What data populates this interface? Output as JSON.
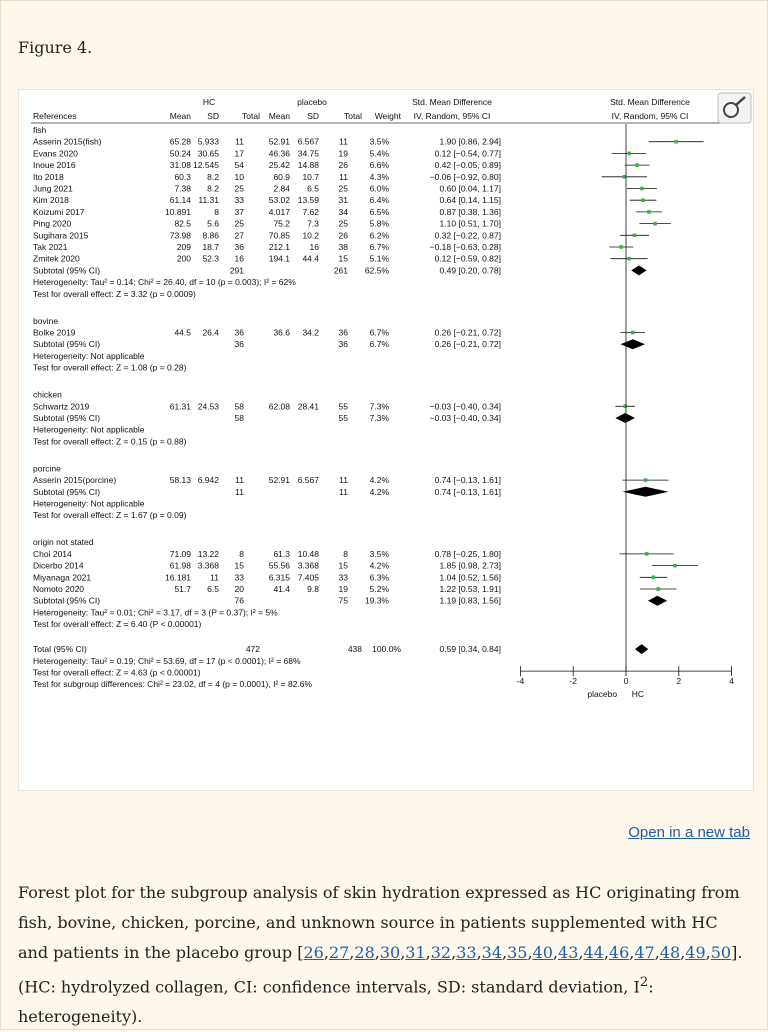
{
  "figure_label": "Figure 4.",
  "open_link": "Open in a new tab",
  "caption": {
    "before_refs": "Forest plot for the subgroup analysis of skin hydration expressed as HC originating from fish, bovine, chicken, porcine, and unknown source in patients supplemented with HC and patients in the placebo group [",
    "refs": [
      "26",
      "27",
      "28",
      "30",
      "31",
      "32",
      "33",
      "34",
      "35",
      "40",
      "43",
      "44",
      "46",
      "47",
      "48",
      "49",
      "50"
    ],
    "after_refs": "]. (HC: hydrolyzed collagen, CI: confidence intervals, SD: standard deviation, I",
    "sup": "2",
    "end": ": heterogeneity)."
  },
  "chart_data": {
    "type": "forest",
    "title": "Std. Mean Difference IV, Random, 95% CI",
    "header": {
      "group_hc": "HC",
      "group_placebo": "placebo",
      "smd_col": "Std. Mean Difference",
      "smd_sub": "IV, Random, 95% CI",
      "plot_col": "Std. Mean Difference",
      "plot_sub": "IV, Random, 95% CI",
      "columns": [
        "References",
        "Mean",
        "SD",
        "Total",
        "Mean",
        "SD",
        "Total",
        "Weight",
        "IV, Random, 95% CI"
      ]
    },
    "xaxis": {
      "ticks": [
        "-4",
        "-2",
        "0",
        "2",
        "4"
      ],
      "range": [
        -4,
        4
      ],
      "left_label": "placebo",
      "right_label": "HC"
    },
    "groups": [
      {
        "name": "fish",
        "studies": [
          {
            "ref": "Asserin 2015(fish)",
            "hc_mean": "65.28",
            "hc_sd": "5.933",
            "hc_n": "11",
            "pl_mean": "52.91",
            "pl_sd": "6.567",
            "pl_n": "11",
            "weight": "3.5%",
            "ci": "1.90 [0.86, 2.94]",
            "est": 1.9,
            "lo": 0.86,
            "hi": 2.94
          },
          {
            "ref": "Evans 2020",
            "hc_mean": "50.24",
            "hc_sd": "30.65",
            "hc_n": "17",
            "pl_mean": "46.36",
            "pl_sd": "34.75",
            "pl_n": "19",
            "weight": "5.4%",
            "ci": "0.12 [−0.54, 0.77]",
            "est": 0.12,
            "lo": -0.54,
            "hi": 0.77
          },
          {
            "ref": "Inoue 2016",
            "hc_mean": "31.08",
            "hc_sd": "12.545",
            "hc_n": "54",
            "pl_mean": "25.42",
            "pl_sd": "14.88",
            "pl_n": "26",
            "weight": "6.6%",
            "ci": "0.42 [−0.05, 0.89]",
            "est": 0.42,
            "lo": -0.05,
            "hi": 0.89
          },
          {
            "ref": "Ito 2018",
            "hc_mean": "60.3",
            "hc_sd": "8.2",
            "hc_n": "10",
            "pl_mean": "60.9",
            "pl_sd": "10.7",
            "pl_n": "11",
            "weight": "4.3%",
            "ci": "−0.06 [−0.92, 0.80]",
            "est": -0.06,
            "lo": -0.92,
            "hi": 0.8
          },
          {
            "ref": "Jung 2021",
            "hc_mean": "7.38",
            "hc_sd": "8.2",
            "hc_n": "25",
            "pl_mean": "2.84",
            "pl_sd": "6.5",
            "pl_n": "25",
            "weight": "6.0%",
            "ci": "0.60 [0.04, 1.17]",
            "est": 0.6,
            "lo": 0.04,
            "hi": 1.17
          },
          {
            "ref": "Kim 2018",
            "hc_mean": "61.14",
            "hc_sd": "11.31",
            "hc_n": "33",
            "pl_mean": "53.02",
            "pl_sd": "13.59",
            "pl_n": "31",
            "weight": "6.4%",
            "ci": "0.64 [0.14, 1.15]",
            "est": 0.64,
            "lo": 0.14,
            "hi": 1.15
          },
          {
            "ref": "Koizumi 2017",
            "hc_mean": "10.891",
            "hc_sd": "8",
            "hc_n": "37",
            "pl_mean": "4.017",
            "pl_sd": "7.62",
            "pl_n": "34",
            "weight": "6.5%",
            "ci": "0.87 [0.38, 1.36]",
            "est": 0.87,
            "lo": 0.38,
            "hi": 1.36
          },
          {
            "ref": "Ping 2020",
            "hc_mean": "82.5",
            "hc_sd": "5.6",
            "hc_n": "25",
            "pl_mean": "75.2",
            "pl_sd": "7.3",
            "pl_n": "25",
            "weight": "5.8%",
            "ci": "1.10 [0.51, 1.70]",
            "est": 1.1,
            "lo": 0.51,
            "hi": 1.7
          },
          {
            "ref": "Sugihara 2015",
            "hc_mean": "73.98",
            "hc_sd": "8.86",
            "hc_n": "27",
            "pl_mean": "70.85",
            "pl_sd": "10.2",
            "pl_n": "26",
            "weight": "6.2%",
            "ci": "0.32 [−0.22, 0.87]",
            "est": 0.32,
            "lo": -0.22,
            "hi": 0.87
          },
          {
            "ref": "Tak 2021",
            "hc_mean": "209",
            "hc_sd": "18.7",
            "hc_n": "36",
            "pl_mean": "212.1",
            "pl_sd": "16",
            "pl_n": "38",
            "weight": "6.7%",
            "ci": "−0.18 [−0.63, 0.28]",
            "est": -0.18,
            "lo": -0.63,
            "hi": 0.28
          },
          {
            "ref": "Zmitek 2020",
            "hc_mean": "200",
            "hc_sd": "52.3",
            "hc_n": "16",
            "pl_mean": "194.1",
            "pl_sd": "44.4",
            "pl_n": "15",
            "weight": "5.1%",
            "ci": "0.12 [−0.59, 0.82]",
            "est": 0.12,
            "lo": -0.59,
            "hi": 0.82
          }
        ],
        "subtotal": {
          "label": "Subtotal (95% CI)",
          "hc_n": "291",
          "pl_n": "261",
          "weight": "62.5%",
          "ci": "0.49 [0.20, 0.78]",
          "est": 0.49,
          "lo": 0.2,
          "hi": 0.78
        },
        "het": "Heterogeneity: Tau² = 0.14; Chi² = 26.40, df = 10 (p = 0.003); I² = 62%",
        "test": "Test for overall effect: Z = 3.32 (p = 0.0009)"
      },
      {
        "name": "bovine",
        "studies": [
          {
            "ref": "Bolke 2019",
            "hc_mean": "44.5",
            "hc_sd": "26.4",
            "hc_n": "36",
            "pl_mean": "36.6",
            "pl_sd": "34.2",
            "pl_n": "36",
            "weight": "6.7%",
            "ci": "0.26 [−0.21, 0.72]",
            "est": 0.26,
            "lo": -0.21,
            "hi": 0.72
          }
        ],
        "subtotal": {
          "label": "Subtotal (95% CI)",
          "hc_n": "36",
          "pl_n": "36",
          "weight": "6.7%",
          "ci": "0.26 [−0.21, 0.72]",
          "est": 0.26,
          "lo": -0.21,
          "hi": 0.72
        },
        "het": "Heterogeneity: Not applicable",
        "test": "Test for overall effect: Z = 1.08 (p = 0.28)"
      },
      {
        "name": "chicken",
        "studies": [
          {
            "ref": "Schwartz 2019",
            "hc_mean": "61.31",
            "hc_sd": "24.53",
            "hc_n": "58",
            "pl_mean": "62.08",
            "pl_sd": "28.41",
            "pl_n": "55",
            "weight": "7.3%",
            "ci": "−0.03 [−0.40, 0.34]",
            "est": -0.03,
            "lo": -0.4,
            "hi": 0.34
          }
        ],
        "subtotal": {
          "label": "Subtotal (95% CI)",
          "hc_n": "58",
          "pl_n": "55",
          "weight": "7.3%",
          "ci": "−0.03 [−0.40, 0.34]",
          "est": -0.03,
          "lo": -0.4,
          "hi": 0.34
        },
        "het": "Heterogeneity: Not applicable",
        "test": "Test for overall effect: Z = 0.15 (p = 0.88)"
      },
      {
        "name": "porcine",
        "studies": [
          {
            "ref": "Asserin 2015(porcine)",
            "hc_mean": "58.13",
            "hc_sd": "6.942",
            "hc_n": "11",
            "pl_mean": "52.91",
            "pl_sd": "6.567",
            "pl_n": "11",
            "weight": "4.2%",
            "ci": "0.74 [−0.13, 1.61]",
            "est": 0.74,
            "lo": -0.13,
            "hi": 1.61
          }
        ],
        "subtotal": {
          "label": "Subtotal (95% CI)",
          "hc_n": "11",
          "pl_n": "11",
          "weight": "4.2%",
          "ci": "0.74 [−0.13, 1.61]",
          "est": 0.74,
          "lo": -0.13,
          "hi": 1.61
        },
        "het": "Heterogeneity: Not applicable",
        "test": "Test for overall effect: Z = 1.67 (p = 0.09)"
      },
      {
        "name": "origin not stated",
        "studies": [
          {
            "ref": "Choi 2014",
            "hc_mean": "71.09",
            "hc_sd": "13.22",
            "hc_n": "8",
            "pl_mean": "61.3",
            "pl_sd": "10.48",
            "pl_n": "8",
            "weight": "3.5%",
            "ci": "0.78 [−0.25, 1.80]",
            "est": 0.78,
            "lo": -0.25,
            "hi": 1.8
          },
          {
            "ref": "Dicerbo 2014",
            "hc_mean": "61.98",
            "hc_sd": "3.368",
            "hc_n": "15",
            "pl_mean": "55.56",
            "pl_sd": "3.368",
            "pl_n": "15",
            "weight": "4.2%",
            "ci": "1.85 [0.98, 2.73]",
            "est": 1.85,
            "lo": 0.98,
            "hi": 2.73
          },
          {
            "ref": "Miyanaga 2021",
            "hc_mean": "16.181",
            "hc_sd": "11",
            "hc_n": "33",
            "pl_mean": "6.315",
            "pl_sd": "7.405",
            "pl_n": "33",
            "weight": "6.3%",
            "ci": "1.04 [0.52, 1.56]",
            "est": 1.04,
            "lo": 0.52,
            "hi": 1.56
          },
          {
            "ref": "Nomoto 2020",
            "hc_mean": "51.7",
            "hc_sd": "6.5",
            "hc_n": "20",
            "pl_mean": "41.4",
            "pl_sd": "9.8",
            "pl_n": "19",
            "weight": "5.2%",
            "ci": "1.22 [0.53, 1.91]",
            "est": 1.22,
            "lo": 0.53,
            "hi": 1.91
          }
        ],
        "subtotal": {
          "label": "Subtotal (95% CI)",
          "hc_n": "76",
          "pl_n": "75",
          "weight": "19.3%",
          "ci": "1.19 [0.83, 1.56]",
          "est": 1.19,
          "lo": 0.83,
          "hi": 1.56
        },
        "het": "Heterogeneity: Tau² = 0.01; Chi² = 3.17, df = 3 (P = 0.37); I² = 5%",
        "test": "Test for overall effect: Z = 6.40 (P < 0.00001)"
      }
    ],
    "total": {
      "label": "Total (95% CI)",
      "hc_n": "472",
      "pl_n": "438",
      "weight": "100.0%",
      "ci": "0.59 [0.34, 0.84]",
      "est": 0.59,
      "lo": 0.34,
      "hi": 0.84
    },
    "footer": [
      "Heterogeneity: Tau² = 0.19; Chi² = 53.69, df = 17 (p < 0.0001); I² = 68%",
      "Test for overall effect: Z = 4.63 (p < 0.00001)",
      "Test for subgroup differences: Chi² = 23.02, df = 4 (p = 0.0001), I² = 82.6%"
    ]
  }
}
